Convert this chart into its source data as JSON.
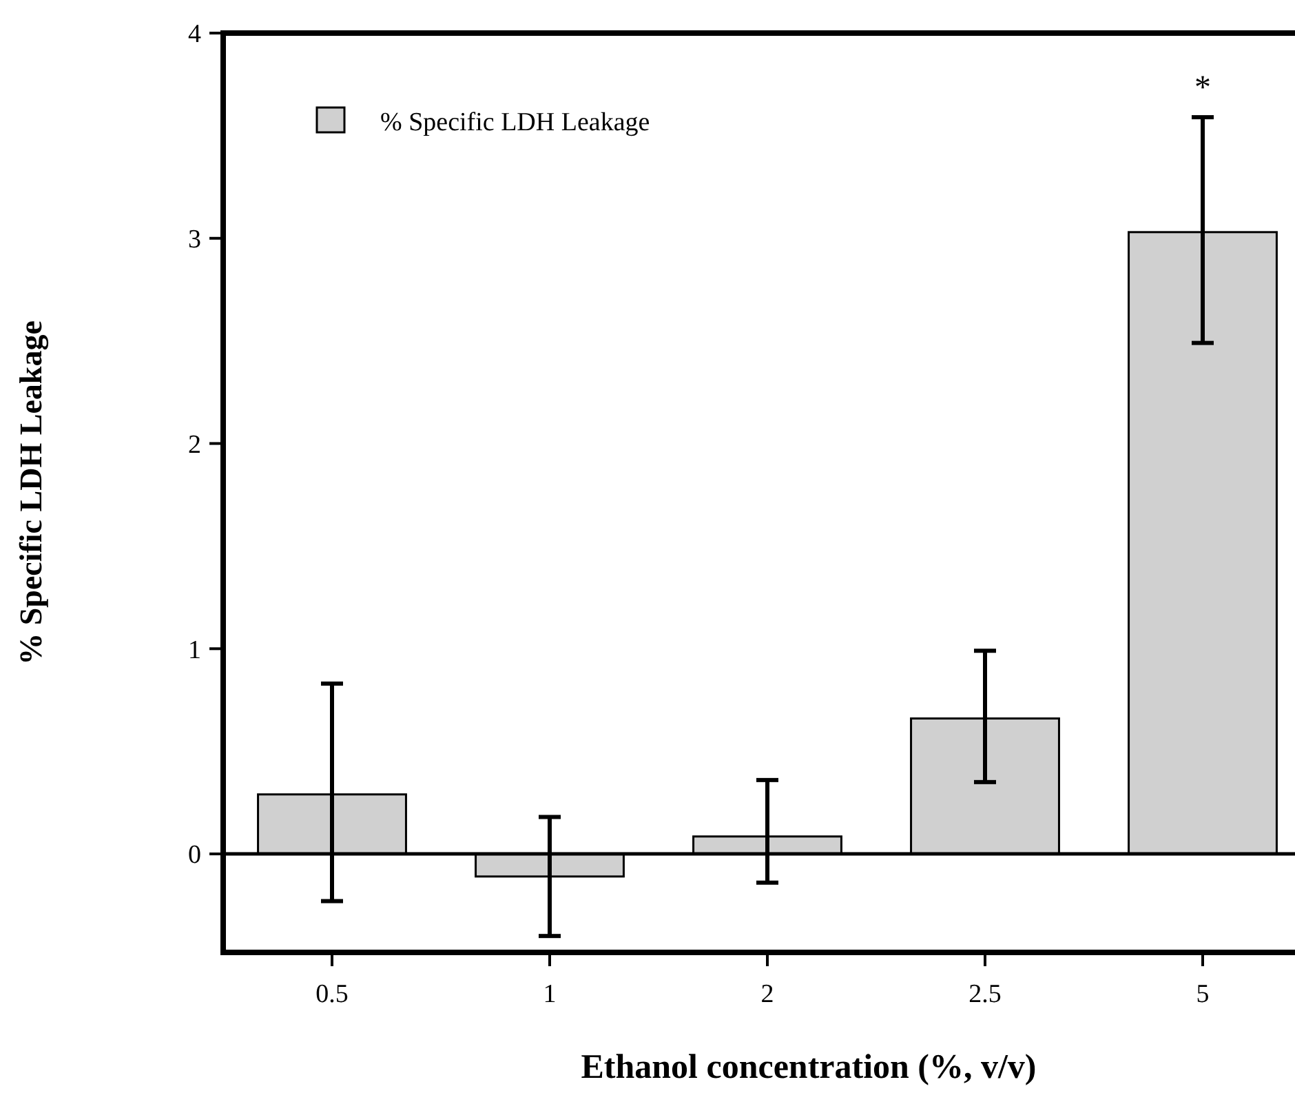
{
  "chart_data": {
    "type": "bar",
    "xlabel": "Ethanol concentration (%, v/v)",
    "ylabel": "% Specific LDH Leakage",
    "categories": [
      "0.5",
      "1",
      "2",
      "2.5",
      "5"
    ],
    "series": [
      {
        "name": "% Specific LDH Leakage",
        "color": "#d0d0d0",
        "values": [
          0.29,
          -0.11,
          0.085,
          0.66,
          3.03
        ],
        "errors": [
          [
            -0.23,
            0.83
          ],
          [
            -0.4,
            0.18
          ],
          [
            -0.14,
            0.36
          ],
          [
            0.35,
            0.99
          ],
          [
            2.49,
            3.59
          ]
        ]
      }
    ],
    "ylim": [
      -0.48,
      4
    ],
    "yticks": [
      0,
      1,
      2,
      3,
      4
    ],
    "legend": "top left",
    "annotations": [
      {
        "text": "*",
        "x": "5",
        "y": 3.59
      }
    ]
  }
}
